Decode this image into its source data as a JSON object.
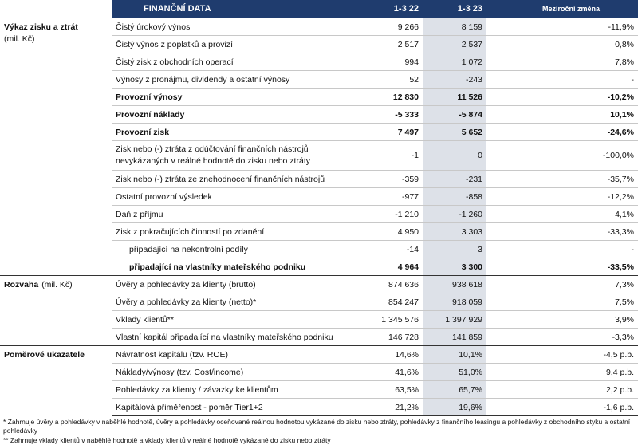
{
  "header": {
    "title": "FINANČNÍ DATA",
    "columns": [
      "1-3 22",
      "1-3 23",
      "Meziroční změna"
    ]
  },
  "sections": [
    {
      "label": "Výkaz zisku a ztrát",
      "unit": "(mil. Kč)",
      "rows": [
        {
          "label": "Čistý úrokový výnos",
          "values": [
            "9 266",
            "8 159",
            "-11,9%"
          ]
        },
        {
          "label": "Čistý výnos z poplatků a provizí",
          "values": [
            "2 517",
            "2 537",
            "0,8%"
          ]
        },
        {
          "label": "Čistý zisk z obchodních operací",
          "values": [
            "994",
            "1 072",
            "7,8%"
          ]
        },
        {
          "label": "Výnosy z pronájmu, dividendy a ostatní výnosy",
          "values": [
            "52",
            "-243",
            "-"
          ]
        },
        {
          "label": "Provozní výnosy",
          "values": [
            "12 830",
            "11 526",
            "-10,2%"
          ],
          "bold": true
        },
        {
          "label": "Provozní náklady",
          "values": [
            "-5 333",
            "-5 874",
            "10,1%"
          ],
          "bold": true
        },
        {
          "label": "Provozní zisk",
          "values": [
            "7 497",
            "5 652",
            "-24,6%"
          ],
          "bold": true
        },
        {
          "label": "Zisk nebo (-) ztráta z odúčtování finančních nástrojů nevykázaných v reálné hodnotě do zisku nebo ztráty",
          "values": [
            "-1",
            "0",
            "-100,0%"
          ]
        },
        {
          "label": "Zisk nebo (-) ztráta ze znehodnocení finančních nástrojů",
          "values": [
            "-359",
            "-231",
            "-35,7%"
          ]
        },
        {
          "label": "Ostatní provozní výsledek",
          "values": [
            "-977",
            "-858",
            "-12,2%"
          ]
        },
        {
          "label": "Daň z příjmu",
          "values": [
            "-1 210",
            "-1 260",
            "4,1%"
          ]
        },
        {
          "label": "Zisk z pokračujících činností po zdanění",
          "values": [
            "4 950",
            "3 303",
            "-33,3%"
          ]
        },
        {
          "label": "připadající na nekontrolní podíly",
          "values": [
            "-14",
            "3",
            "-"
          ],
          "indent": true
        },
        {
          "label": "připadající na vlastníky mateřského podniku",
          "values": [
            "4 964",
            "3 300",
            "-33,5%"
          ],
          "bold": true,
          "indent": true
        }
      ]
    },
    {
      "label": "Rozvaha",
      "unit": "(mil. Kč)",
      "rows": [
        {
          "label": "Úvěry a pohledávky za klienty (brutto)",
          "values": [
            "874 636",
            "938 618",
            "7,3%"
          ]
        },
        {
          "label": "Úvěry a pohledávky za klienty (netto)*",
          "values": [
            "854 247",
            "918 059",
            "7,5%"
          ]
        },
        {
          "label": "Vklady klientů**",
          "values": [
            "1 345 576",
            "1 397 929",
            "3,9%"
          ]
        },
        {
          "label": "Vlastní kapitál připadající na vlastníky mateřského podniku",
          "values": [
            "146 728",
            "141 859",
            "-3,3%"
          ]
        }
      ]
    },
    {
      "label": "Poměrové ukazatele",
      "rows": [
        {
          "label": "Návratnost kapitálu (tzv. ROE)",
          "values": [
            "14,6%",
            "10,1%",
            "-4,5 p.b."
          ]
        },
        {
          "label": "Náklady/výnosy (tzv. Cost/income)",
          "values": [
            "41,6%",
            "51,0%",
            "9,4 p.b."
          ]
        },
        {
          "label": "Pohledávky za klienty / závazky ke klientům",
          "values": [
            "63,5%",
            "65,7%",
            "2,2 p.b."
          ]
        },
        {
          "label": "Kapitálová přiměřenost - poměr Tier1+2",
          "values": [
            "21,2%",
            "19,6%",
            "-1,6 p.b."
          ]
        }
      ]
    }
  ],
  "footnotes": [
    "* Zahrnuje úvěry a pohledávky v naběhlé hodnotě, úvěry a pohledávky oceňované reálnou hodnotou vykázané do zisku nebo ztráty, pohledávky z finančního leasingu a pohledávky z obchodního styku a ostatní pohledávky",
    "** Zahrnuje vklady klientů v naběhlé hodnotě a vklady klientů v reálné hodnotě vykázané do zisku nebo ztráty"
  ]
}
